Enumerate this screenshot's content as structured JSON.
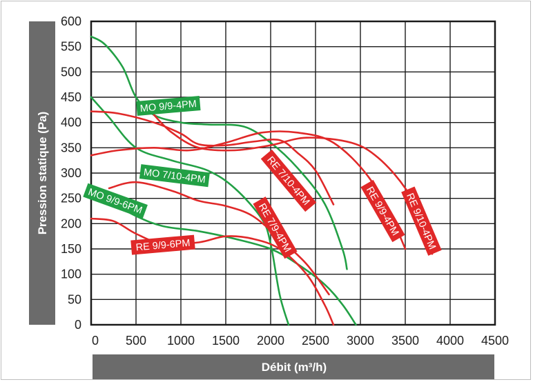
{
  "chart_data": {
    "type": "line",
    "xlabel": "Débit (m³/h)",
    "ylabel": "Pression statique (Pa)",
    "xlim": [
      0,
      4500
    ],
    "ylim": [
      0,
      600
    ],
    "x_ticks": [
      "0",
      "500",
      "1000",
      "1500",
      "2000",
      "2500",
      "3000",
      "3500",
      "4000",
      "4500"
    ],
    "y_ticks": [
      "0",
      "50",
      "100",
      "150",
      "200",
      "250",
      "300",
      "350",
      "400",
      "450",
      "500",
      "550",
      "600"
    ],
    "grid": true,
    "colors": {
      "MO": "#22a045",
      "RE": "#e02828",
      "axis_band": "#6b6b6b"
    },
    "series": [
      {
        "name": "MO 9/9-4PM",
        "group": "MO",
        "color": "#22a045",
        "label_at": [
          860,
          433
        ],
        "label_angle": -5,
        "points": [
          [
            0,
            570
          ],
          [
            150,
            555
          ],
          [
            350,
            510
          ],
          [
            500,
            450
          ],
          [
            700,
            415
          ],
          [
            1000,
            400
          ],
          [
            1300,
            396
          ],
          [
            1700,
            392
          ],
          [
            2000,
            360
          ],
          [
            2300,
            310
          ],
          [
            2600,
            240
          ],
          [
            2800,
            150
          ],
          [
            2850,
            110
          ]
        ]
      },
      {
        "name": "MO 7/10-4PM",
        "group": "MO",
        "color": "#22a045",
        "label_at": [
          930,
          295
        ],
        "label_angle": 7,
        "points": [
          [
            0,
            450
          ],
          [
            200,
            410
          ],
          [
            500,
            350
          ],
          [
            900,
            325
          ],
          [
            1300,
            305
          ],
          [
            1600,
            270
          ],
          [
            1900,
            210
          ],
          [
            2000,
            160
          ],
          [
            2100,
            60
          ],
          [
            2200,
            0
          ]
        ]
      },
      {
        "name": "MO 9/9-6PM",
        "group": "MO",
        "color": "#22a045",
        "label_at": [
          270,
          245
        ],
        "label_angle": 20,
        "points": [
          [
            0,
            265
          ],
          [
            200,
            245
          ],
          [
            500,
            215
          ],
          [
            800,
            195
          ],
          [
            1200,
            185
          ],
          [
            1600,
            170
          ],
          [
            2000,
            150
          ],
          [
            2300,
            120
          ],
          [
            2600,
            80
          ],
          [
            2800,
            40
          ],
          [
            2950,
            0
          ]
        ]
      },
      {
        "name": "RE 7/10-4PM",
        "group": "RE",
        "color": "#e02828",
        "label_at": [
          2200,
          285
        ],
        "label_angle": 50,
        "points": [
          [
            0,
            422
          ],
          [
            300,
            418
          ],
          [
            700,
            400
          ],
          [
            1000,
            378
          ],
          [
            1200,
            357
          ],
          [
            1500,
            355
          ],
          [
            1800,
            362
          ],
          [
            2100,
            365
          ],
          [
            2300,
            340
          ],
          [
            2500,
            305
          ],
          [
            2700,
            238
          ]
        ]
      },
      {
        "name": "RE 7/9-4PM",
        "group": "RE",
        "color": "#e02828",
        "label_at": [
          2050,
          192
        ],
        "label_angle": 60,
        "points": [
          [
            0,
            210
          ],
          [
            250,
            205
          ],
          [
            500,
            180
          ],
          [
            800,
            160
          ],
          [
            1200,
            163
          ],
          [
            1500,
            175
          ],
          [
            1800,
            170
          ],
          [
            2100,
            150
          ],
          [
            2400,
            100
          ],
          [
            2600,
            40
          ],
          [
            2700,
            0
          ]
        ]
      },
      {
        "name": "RE 9/9-6PM",
        "group": "RE",
        "color": "#e02828",
        "label_at": [
          800,
          158
        ],
        "label_angle": -5,
        "points": [
          [
            200,
            270
          ],
          [
            500,
            282
          ],
          [
            900,
            265
          ],
          [
            1200,
            245
          ],
          [
            1500,
            235
          ],
          [
            1800,
            215
          ],
          [
            2100,
            170
          ],
          [
            2400,
            120
          ],
          [
            2650,
            60
          ]
        ]
      },
      {
        "name": "RE 9/9-4PM",
        "group": "RE",
        "color": "#e02828",
        "label_at": [
          3250,
          225
        ],
        "label_angle": 60,
        "points": [
          [
            0,
            335
          ],
          [
            300,
            345
          ],
          [
            700,
            350
          ],
          [
            1100,
            345
          ],
          [
            1500,
            360
          ],
          [
            1900,
            380
          ],
          [
            2300,
            380
          ],
          [
            2700,
            360
          ],
          [
            3100,
            290
          ],
          [
            3400,
            190
          ],
          [
            3500,
            150
          ]
        ]
      },
      {
        "name": "RE 9/10-4PM",
        "group": "RE",
        "color": "#e02828",
        "label_at": [
          3680,
          205
        ],
        "label_angle": 67,
        "points": [
          [
            700,
            415
          ],
          [
            900,
            380
          ],
          [
            1200,
            350
          ],
          [
            1600,
            345
          ],
          [
            2000,
            355
          ],
          [
            2400,
            370
          ],
          [
            2900,
            360
          ],
          [
            3200,
            330
          ],
          [
            3500,
            270
          ],
          [
            3700,
            200
          ],
          [
            3800,
            140
          ]
        ]
      }
    ]
  }
}
